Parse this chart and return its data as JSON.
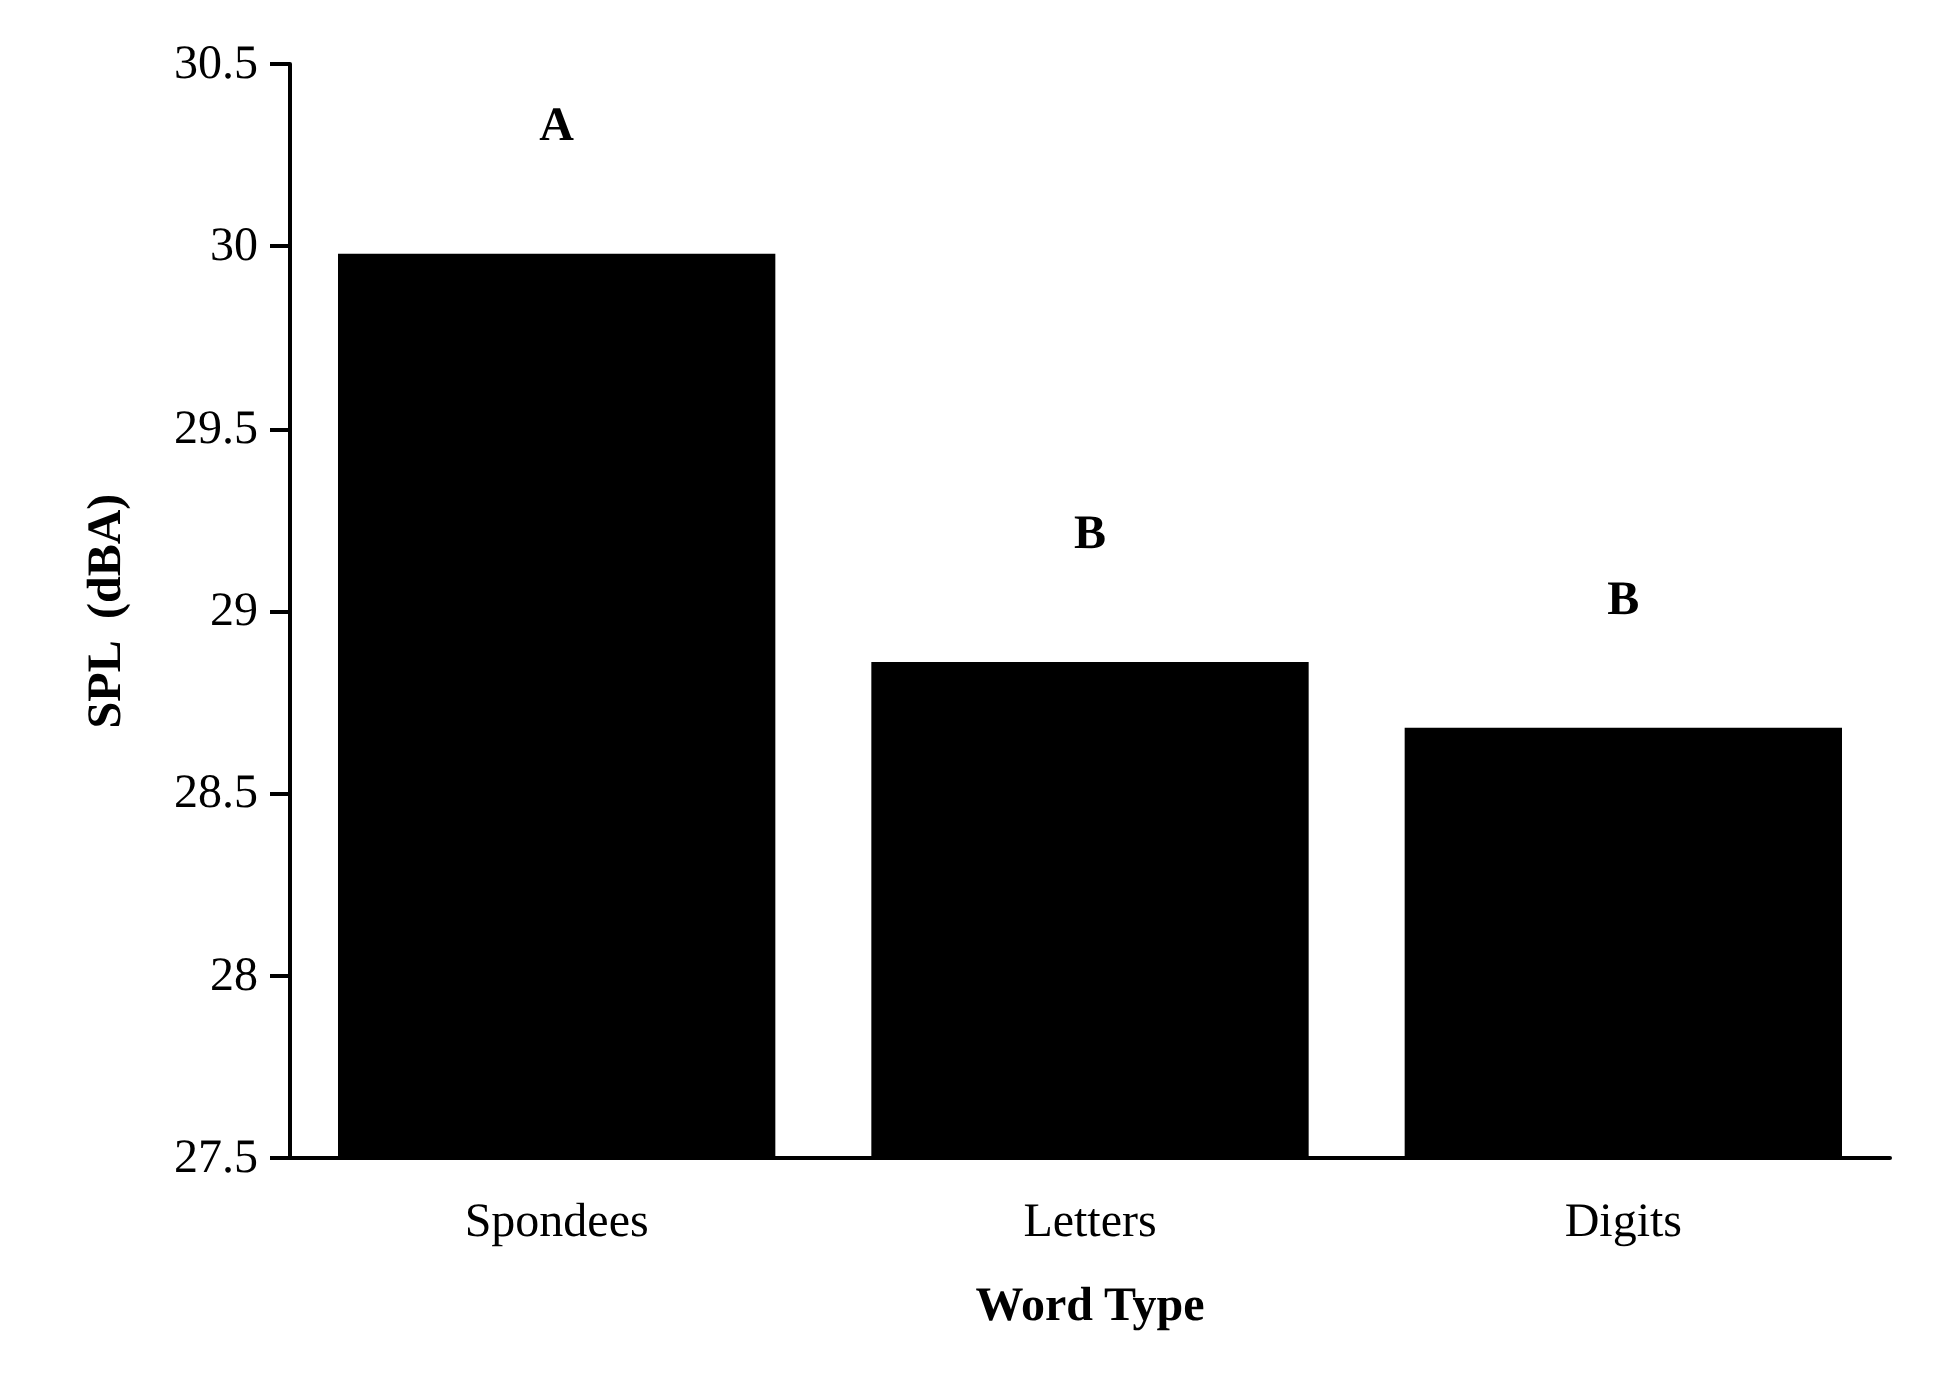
{
  "chart_data": {
    "type": "bar",
    "xlabel": "Word Type",
    "ylabel": "SPL  (dBA)",
    "categories": [
      "Spondees",
      "Letters",
      "Digits"
    ],
    "values": [
      29.98,
      28.86,
      28.68
    ],
    "color": "#000000",
    "ylim": [
      27.5,
      30.5
    ],
    "yticks": [
      27.5,
      28,
      28.5,
      29,
      29.5,
      30,
      30.5
    ],
    "grid": false,
    "annotations": [
      "A",
      "B",
      "B"
    ]
  }
}
